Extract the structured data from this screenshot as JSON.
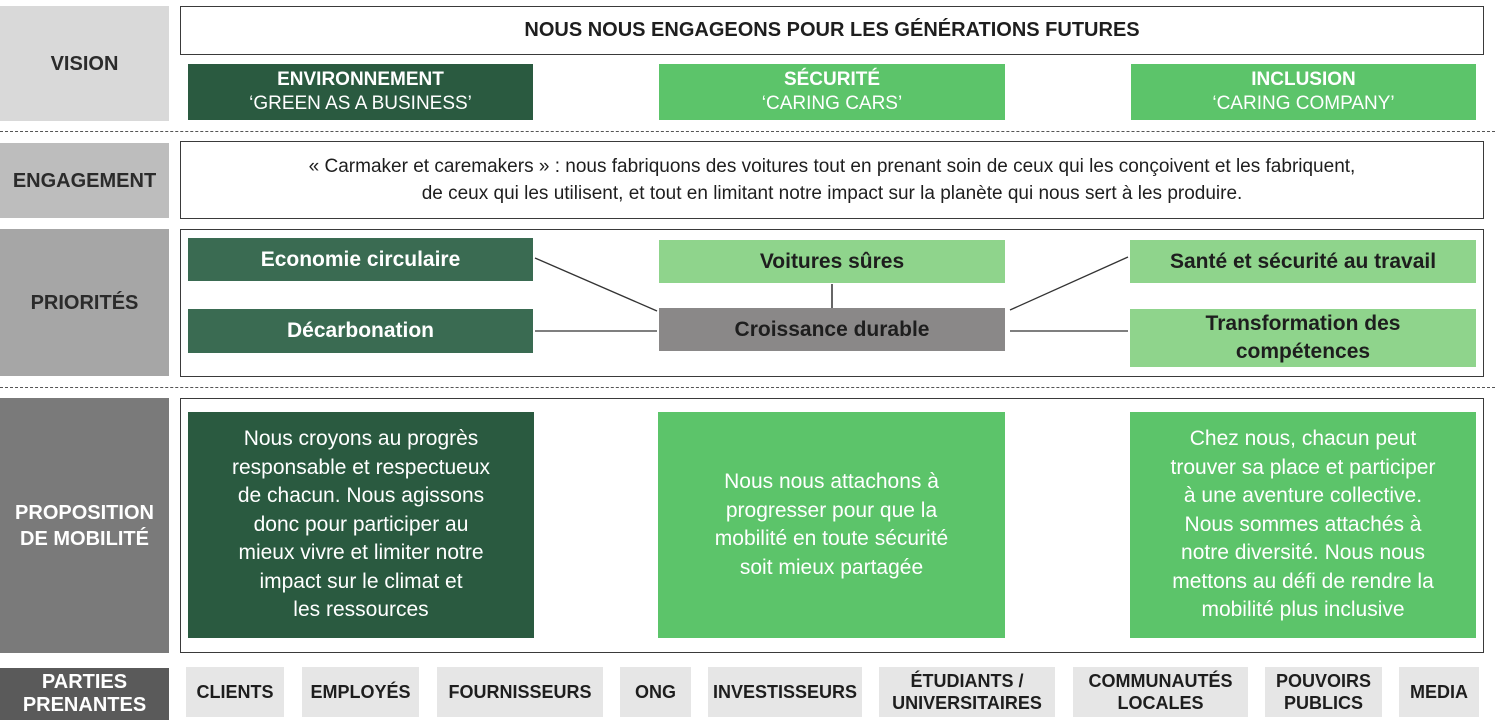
{
  "row_labels": {
    "vision": "VISION",
    "engagement": "ENGAGEMENT",
    "priorities": "PRIORITÉS",
    "proposition": "PROPOSITION\nDE MOBILITÉ",
    "stakeholders": "PARTIES\nPRENANTES"
  },
  "vision": {
    "headline": "NOUS NOUS ENGAGEONS POUR LES GÉNÉRATIONS FUTURES",
    "pillars": [
      {
        "title": "ENVIRONNEMENT",
        "subtitle": "‘GREEN AS A BUSINESS’"
      },
      {
        "title": "SÉCURITÉ",
        "subtitle": "‘CARING CARS’"
      },
      {
        "title": "INCLUSION",
        "subtitle": "‘CARING COMPANY’"
      }
    ]
  },
  "engagement": {
    "line1": "« Carmaker et caremakers » : nous fabriquons des voitures tout en prenant soin de ceux qui les conçoivent et les fabriquent,",
    "line2": "de ceux qui les utilisent, et tout en limitant notre impact sur la planète qui nous sert à les produire."
  },
  "priorities": {
    "circular_economy": "Economie circulaire",
    "decarbonation": "Décarbonation",
    "safe_cars": "Voitures sûres",
    "sustainable_growth": "Croissance durable",
    "health_safety": "Santé et sécurité au travail",
    "skills_transformation": "Transformation des\ncompétences"
  },
  "proposition": {
    "environment": "Nous croyons au progrès\nresponsable et respectueux\nde chacun. Nous agissons\ndonc pour participer au\nmieux vivre et limiter notre\nimpact sur le climat et\nles ressources",
    "safety": "Nous nous attachons à\nprogresser pour que la\nmobilité en toute sécurité\nsoit mieux partagée",
    "inclusion": "Chez nous, chacun peut\ntrouver sa place et participer\nà une aventure collective.\nNous sommes attachés à\nnotre diversité. Nous nous\nmettons au défi de rendre la\nmobilité plus inclusive"
  },
  "stakeholders": [
    "CLIENTS",
    "EMPLOYÉS",
    "FOURNISSEURS",
    "ONG",
    "INVESTISSEURS",
    "ÉTUDIANTS /\nUNIVERSITAIRES",
    "COMMUNAUTÉS\nLOCALES",
    "POUVOIRS\nPUBLICS",
    "MEDIA"
  ],
  "colors": {
    "environment_dark": "#2a5a40",
    "environment_mid": "#3a6b52",
    "green": "#5cc46a",
    "light_green": "#8fd48c",
    "growth_grey": "#8a8888",
    "label_vision": "#d9d9d9",
    "label_engagement": "#bdbdbd",
    "label_priorities": "#a6a6a6",
    "label_proposition": "#7a7a7a",
    "label_stakeholders": "#5a5a5a",
    "stakeholder_bg": "#e6e6e6"
  }
}
